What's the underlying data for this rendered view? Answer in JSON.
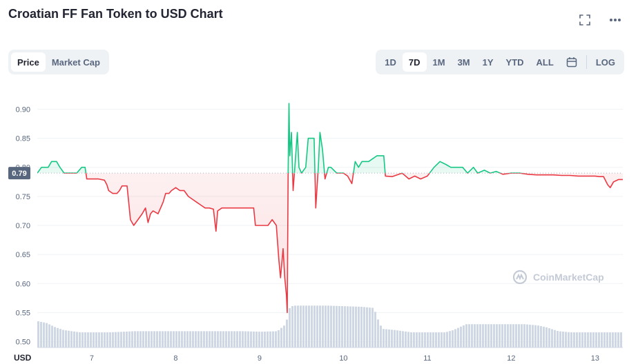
{
  "header": {
    "title": "Croatian FF Fan Token to USD Chart",
    "fullscreen_icon": "fullscreen-icon",
    "more_icon": "more-horizontal-icon"
  },
  "metric_tabs": [
    {
      "label": "Price",
      "active": true
    },
    {
      "label": "Market Cap",
      "active": false
    }
  ],
  "range_tabs": [
    {
      "label": "1D",
      "active": false
    },
    {
      "label": "7D",
      "active": true
    },
    {
      "label": "1M",
      "active": false
    },
    {
      "label": "3M",
      "active": false
    },
    {
      "label": "1Y",
      "active": false
    },
    {
      "label": "YTD",
      "active": false
    },
    {
      "label": "ALL",
      "active": false
    }
  ],
  "calendar_icon": "calendar-icon",
  "log_label": "LOG",
  "watermark": "CoinMarketCap",
  "chart_data": {
    "type": "line",
    "xlabel": "",
    "ylabel": "USD",
    "y_ticks": [
      "0.50",
      "0.55",
      "0.60",
      "0.65",
      "0.70",
      "0.75",
      "0.80",
      "0.85",
      "0.90"
    ],
    "x_ticks": [
      {
        "label": "7",
        "day": 7
      },
      {
        "label": "8",
        "day": 8
      },
      {
        "label": "9",
        "day": 9
      },
      {
        "label": "10",
        "day": 10
      },
      {
        "label": "11",
        "day": 11
      },
      {
        "label": "12",
        "day": 12
      },
      {
        "label": "13",
        "day": 13
      }
    ],
    "ylim": [
      0.49,
      0.91
    ],
    "xlim": [
      6.35,
      13.33
    ],
    "reference_price": 0.79,
    "reference_label": "0.79",
    "colors": {
      "up": "#16c784",
      "down": "#ea3943",
      "volume": "#cfd6e4",
      "grid": "#eff2f5"
    },
    "series": [
      {
        "values": [
          [
            6.35,
            0.79
          ],
          [
            6.4,
            0.8
          ],
          [
            6.48,
            0.8
          ],
          [
            6.52,
            0.81
          ],
          [
            6.58,
            0.81
          ],
          [
            6.62,
            0.8
          ],
          [
            6.67,
            0.79
          ],
          [
            6.75,
            0.79
          ],
          [
            6.82,
            0.79
          ],
          [
            6.88,
            0.8
          ],
          [
            6.92,
            0.8
          ],
          [
            6.94,
            0.78
          ],
          [
            7.0,
            0.78
          ],
          [
            7.08,
            0.78
          ],
          [
            7.15,
            0.778
          ],
          [
            7.18,
            0.77
          ],
          [
            7.2,
            0.76
          ],
          [
            7.25,
            0.755
          ],
          [
            7.3,
            0.755
          ],
          [
            7.33,
            0.76
          ],
          [
            7.36,
            0.768
          ],
          [
            7.42,
            0.768
          ],
          [
            7.44,
            0.74
          ],
          [
            7.46,
            0.71
          ],
          [
            7.5,
            0.7
          ],
          [
            7.55,
            0.71
          ],
          [
            7.6,
            0.72
          ],
          [
            7.64,
            0.73
          ],
          [
            7.67,
            0.705
          ],
          [
            7.7,
            0.72
          ],
          [
            7.73,
            0.725
          ],
          [
            7.79,
            0.72
          ],
          [
            7.82,
            0.73
          ],
          [
            7.85,
            0.74
          ],
          [
            7.88,
            0.755
          ],
          [
            7.92,
            0.755
          ],
          [
            7.95,
            0.76
          ],
          [
            8.0,
            0.765
          ],
          [
            8.05,
            0.76
          ],
          [
            8.1,
            0.76
          ],
          [
            8.15,
            0.75
          ],
          [
            8.2,
            0.745
          ],
          [
            8.25,
            0.74
          ],
          [
            8.3,
            0.735
          ],
          [
            8.35,
            0.73
          ],
          [
            8.4,
            0.73
          ],
          [
            8.45,
            0.728
          ],
          [
            8.48,
            0.69
          ],
          [
            8.5,
            0.725
          ],
          [
            8.55,
            0.73
          ],
          [
            8.65,
            0.73
          ],
          [
            8.75,
            0.73
          ],
          [
            8.85,
            0.73
          ],
          [
            8.93,
            0.73
          ],
          [
            8.95,
            0.7
          ],
          [
            9.0,
            0.7
          ],
          [
            9.1,
            0.7
          ],
          [
            9.15,
            0.71
          ],
          [
            9.2,
            0.7
          ],
          [
            9.23,
            0.64
          ],
          [
            9.25,
            0.61
          ],
          [
            9.28,
            0.66
          ],
          [
            9.3,
            0.61
          ],
          [
            9.32,
            0.58
          ],
          [
            9.33,
            0.55
          ],
          [
            9.34,
            0.79
          ],
          [
            9.35,
            0.91
          ],
          [
            9.36,
            0.82
          ],
          [
            9.38,
            0.86
          ],
          [
            9.4,
            0.76
          ],
          [
            9.42,
            0.8
          ],
          [
            9.45,
            0.86
          ],
          [
            9.47,
            0.8
          ],
          [
            9.5,
            0.79
          ],
          [
            9.55,
            0.8
          ],
          [
            9.58,
            0.85
          ],
          [
            9.62,
            0.85
          ],
          [
            9.65,
            0.85
          ],
          [
            9.67,
            0.73
          ],
          [
            9.7,
            0.8
          ],
          [
            9.72,
            0.86
          ],
          [
            9.75,
            0.83
          ],
          [
            9.78,
            0.78
          ],
          [
            9.8,
            0.79
          ],
          [
            9.82,
            0.8
          ],
          [
            9.85,
            0.8
          ],
          [
            9.92,
            0.79
          ],
          [
            10.0,
            0.79
          ],
          [
            10.05,
            0.785
          ],
          [
            10.1,
            0.772
          ],
          [
            10.14,
            0.81
          ],
          [
            10.18,
            0.8
          ],
          [
            10.22,
            0.81
          ],
          [
            10.3,
            0.81
          ],
          [
            10.4,
            0.82
          ],
          [
            10.48,
            0.82
          ],
          [
            10.5,
            0.785
          ],
          [
            10.58,
            0.784
          ],
          [
            10.62,
            0.786
          ],
          [
            10.7,
            0.79
          ],
          [
            10.78,
            0.78
          ],
          [
            10.85,
            0.785
          ],
          [
            10.92,
            0.78
          ],
          [
            11.0,
            0.785
          ],
          [
            11.08,
            0.8
          ],
          [
            11.15,
            0.81
          ],
          [
            11.22,
            0.805
          ],
          [
            11.28,
            0.8
          ],
          [
            11.35,
            0.8
          ],
          [
            11.42,
            0.8
          ],
          [
            11.48,
            0.79
          ],
          [
            11.55,
            0.8
          ],
          [
            11.6,
            0.79
          ],
          [
            11.68,
            0.795
          ],
          [
            11.75,
            0.79
          ],
          [
            11.82,
            0.793
          ],
          [
            11.9,
            0.788
          ],
          [
            12.0,
            0.79
          ],
          [
            12.1,
            0.79
          ],
          [
            12.2,
            0.788
          ],
          [
            12.3,
            0.787
          ],
          [
            12.4,
            0.787
          ],
          [
            12.5,
            0.787
          ],
          [
            12.6,
            0.786
          ],
          [
            12.7,
            0.786
          ],
          [
            12.8,
            0.785
          ],
          [
            12.9,
            0.785
          ],
          [
            13.0,
            0.785
          ],
          [
            13.05,
            0.784
          ],
          [
            13.1,
            0.784
          ],
          [
            13.15,
            0.77
          ],
          [
            13.18,
            0.765
          ],
          [
            13.22,
            0.775
          ],
          [
            13.28,
            0.779
          ],
          [
            13.33,
            0.779
          ]
        ]
      }
    ],
    "volume": [
      [
        6.35,
        0.045
      ],
      [
        6.45,
        0.042
      ],
      [
        6.55,
        0.035
      ],
      [
        6.65,
        0.03
      ],
      [
        6.75,
        0.028
      ],
      [
        6.85,
        0.026
      ],
      [
        7.0,
        0.026
      ],
      [
        7.2,
        0.026
      ],
      [
        7.5,
        0.028
      ],
      [
        7.8,
        0.028
      ],
      [
        8.0,
        0.028
      ],
      [
        8.2,
        0.028
      ],
      [
        8.5,
        0.028
      ],
      [
        8.8,
        0.028
      ],
      [
        9.0,
        0.027
      ],
      [
        9.2,
        0.028
      ],
      [
        9.3,
        0.04
      ],
      [
        9.35,
        0.07
      ],
      [
        9.4,
        0.072
      ],
      [
        9.6,
        0.072
      ],
      [
        9.8,
        0.072
      ],
      [
        10.0,
        0.071
      ],
      [
        10.2,
        0.07
      ],
      [
        10.35,
        0.068
      ],
      [
        10.4,
        0.048
      ],
      [
        10.45,
        0.032
      ],
      [
        10.6,
        0.03
      ],
      [
        10.8,
        0.026
      ],
      [
        11.0,
        0.026
      ],
      [
        11.2,
        0.026
      ],
      [
        11.3,
        0.03
      ],
      [
        11.45,
        0.04
      ],
      [
        11.6,
        0.04
      ],
      [
        11.8,
        0.04
      ],
      [
        12.0,
        0.04
      ],
      [
        12.15,
        0.04
      ],
      [
        12.3,
        0.038
      ],
      [
        12.4,
        0.035
      ],
      [
        12.55,
        0.028
      ],
      [
        12.7,
        0.026
      ],
      [
        12.9,
        0.026
      ],
      [
        13.1,
        0.026
      ],
      [
        13.33,
        0.026
      ]
    ]
  }
}
